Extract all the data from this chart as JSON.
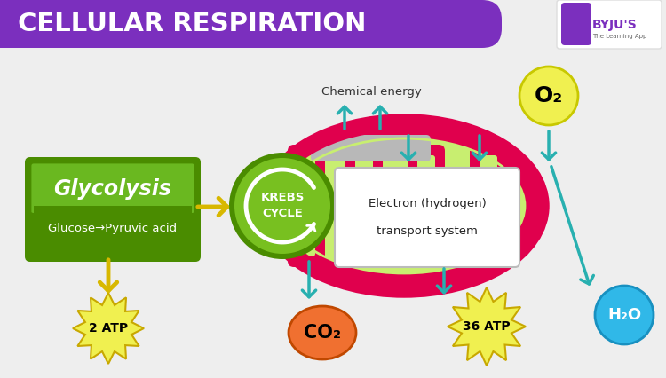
{
  "bg_color": "#dedede",
  "header_color": "#7B2FBE",
  "header_text": "CELLULAR RESPIRATION",
  "header_text_color": "#ffffff",
  "gly_green_light": "#6ab820",
  "gly_green_dark": "#4a8c00",
  "glycolysis_title": "Glycolysis",
  "glycolysis_sub": "Glucose→Pyruvic acid",
  "mito_red": "#e0004d",
  "mito_green": "#c8ee70",
  "krebs_green_light": "#78c020",
  "krebs_green_dark": "#4a8c00",
  "krebs_text1": "KREBS",
  "krebs_text2": "CYCLE",
  "electron_text1": "Electron (hydrogen)",
  "electron_text2": "transport system",
  "chemical_energy_text": "Chemical energy",
  "o2_color": "#f0f050",
  "o2_border": "#c8c800",
  "o2_text": "O₂",
  "h2o_color": "#30b8e8",
  "h2o_border": "#1890c0",
  "h2o_text": "H₂O",
  "atp_color": "#f0f050",
  "atp_border": "#c8a800",
  "atp2_text": "2 ATP",
  "atp36_text": "36 ATP",
  "co2_color": "#f07030",
  "co2_border": "#c04800",
  "co2_text": "CO₂",
  "teal": "#28b0b0",
  "yellow_arrow": "#d8b800"
}
